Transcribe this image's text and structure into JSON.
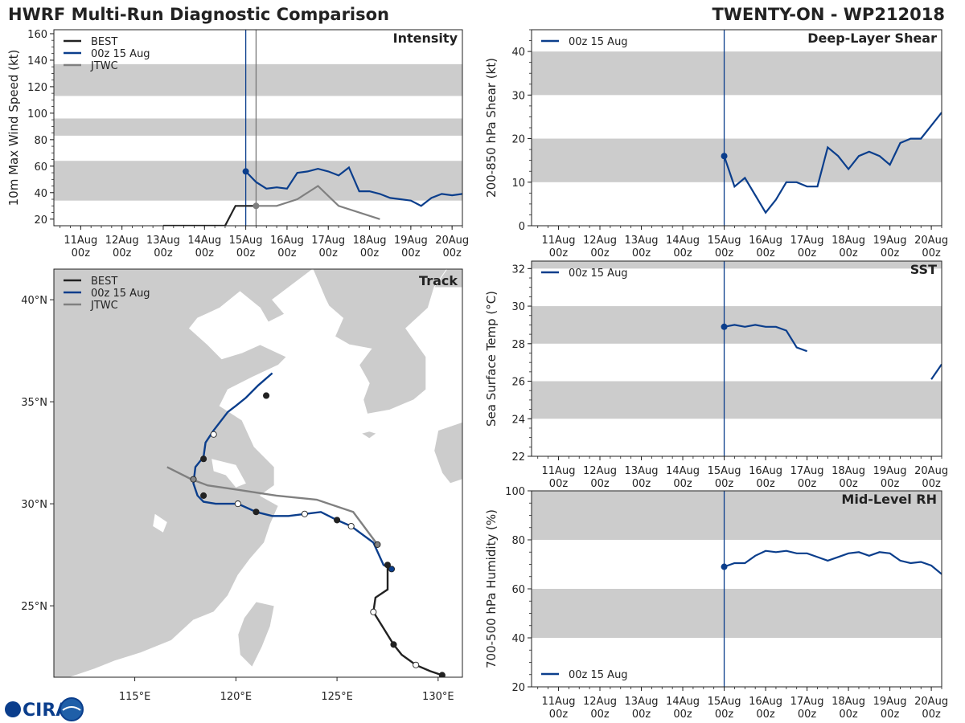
{
  "header": {
    "left_title": "HWRF Multi-Run Diagnostic Comparison",
    "right_title": "TWENTY-ON - WP212018"
  },
  "logo": {
    "text": "CIRA"
  },
  "colors": {
    "best": "#222222",
    "hwrf": "#0b3e8c",
    "jtwc": "#808080",
    "band": "#cccccc",
    "land": "#cccccc",
    "current": "#0b3e8c"
  },
  "time_axis": {
    "labels": [
      "11Aug 00z",
      "12Aug 00z",
      "13Aug 00z",
      "14Aug 00z",
      "15Aug 00z",
      "16Aug 00z",
      "17Aug 00z",
      "18Aug 00z",
      "19Aug 00z",
      "20Aug 00z"
    ],
    "day_values": [
      11,
      12,
      13,
      14,
      15,
      16,
      17,
      18,
      19,
      20
    ],
    "range": [
      10.35,
      20.25
    ],
    "current": 15.0
  },
  "chart_data": [
    {
      "type": "line",
      "id": "intensity",
      "title": "Intensity",
      "ylabel": "10m Max Wind Speed (kt)",
      "ylim": [
        15,
        163
      ],
      "yticks": [
        20,
        40,
        60,
        80,
        100,
        120,
        140,
        160
      ],
      "bands": [
        [
          34,
          64
        ],
        [
          83,
          96
        ],
        [
          113,
          137
        ]
      ],
      "legend": [
        "BEST",
        "00z 15 Aug",
        "JTWC"
      ],
      "extra_vline": 15.25,
      "series": [
        {
          "name": "BEST",
          "style": "best",
          "x": [
            13.0,
            13.5,
            14.0,
            14.5,
            14.75,
            15.0,
            15.25
          ],
          "y": [
            15,
            15,
            15,
            15,
            30,
            30,
            30
          ]
        },
        {
          "name": "00z 15 Aug",
          "style": "hwrf",
          "marker_first": true,
          "x": [
            15.0,
            15.25,
            15.5,
            15.75,
            16.0,
            16.25,
            16.5,
            16.75,
            17.0,
            17.25,
            17.5,
            17.75,
            18.0,
            18.25,
            18.5,
            18.75,
            19.0,
            19.25,
            19.5,
            19.75,
            20.0,
            20.25
          ],
          "y": [
            56,
            48,
            43,
            44,
            43,
            55,
            56,
            58,
            56,
            53,
            59,
            41,
            41,
            39,
            36,
            35,
            34,
            30,
            36,
            39,
            38,
            39
          ]
        },
        {
          "name": "JTWC",
          "style": "jtwc",
          "marker_first": true,
          "x": [
            15.25,
            15.75,
            16.25,
            16.75,
            17.25,
            18.25
          ],
          "y": [
            30,
            30,
            35,
            45,
            30,
            20
          ]
        }
      ]
    },
    {
      "type": "line",
      "id": "shear",
      "title": "Deep-Layer Shear",
      "ylabel": "200-850 hPa Shear (kt)",
      "ylim": [
        0,
        45
      ],
      "yticks": [
        0,
        10,
        20,
        30,
        40
      ],
      "bands": [
        [
          10,
          20
        ],
        [
          30,
          40
        ]
      ],
      "legend": [
        "00z 15 Aug"
      ],
      "series": [
        {
          "name": "00z 15 Aug",
          "style": "hwrf",
          "marker_first": true,
          "x": [
            15.0,
            15.25,
            15.5,
            15.75,
            16.0,
            16.25,
            16.5,
            16.75,
            17.0,
            17.25,
            17.5,
            17.75,
            18.0,
            18.25,
            18.5,
            18.75,
            19.0,
            19.25,
            19.5,
            19.75,
            20.0,
            20.25
          ],
          "y": [
            16,
            9,
            11,
            7,
            3,
            6,
            10,
            10,
            9,
            9,
            18,
            16,
            13,
            16,
            17,
            16,
            14,
            19,
            20,
            20,
            23,
            26
          ]
        }
      ]
    },
    {
      "type": "line",
      "id": "sst",
      "title": "SST",
      "ylabel": "Sea Surface Temp (°C)",
      "ylim": [
        22,
        32.4
      ],
      "yticks": [
        22,
        24,
        26,
        28,
        30,
        32
      ],
      "bands": [
        [
          24,
          26
        ],
        [
          28,
          30
        ],
        [
          32,
          34
        ]
      ],
      "legend": [
        "00z 15 Aug"
      ],
      "series": [
        {
          "name": "00z 15 Aug",
          "style": "hwrf",
          "marker_first": true,
          "x": [
            15.0,
            15.25,
            15.5,
            15.75,
            16.0,
            16.25,
            16.5,
            16.75,
            17.0
          ],
          "y": [
            28.9,
            29.0,
            28.9,
            29.0,
            28.9,
            28.9,
            28.7,
            27.8,
            27.6
          ]
        },
        {
          "name": "00z 15 Aug (cont.)",
          "style": "hwrf",
          "x": [
            20.0,
            20.25
          ],
          "y": [
            26.1,
            26.9
          ]
        }
      ]
    },
    {
      "type": "line",
      "id": "rh",
      "title": "Mid-Level RH",
      "ylabel": "700-500 hPa Humidity (%)",
      "ylim": [
        20,
        100
      ],
      "yticks": [
        20,
        40,
        60,
        80,
        100
      ],
      "bands": [
        [
          40,
          60
        ],
        [
          80,
          100
        ]
      ],
      "legend": [
        "00z 15 Aug"
      ],
      "legend_pos": "bottom-left",
      "series": [
        {
          "name": "00z 15 Aug",
          "style": "hwrf",
          "marker_first": true,
          "x": [
            15.0,
            15.25,
            15.5,
            15.75,
            16.0,
            16.25,
            16.5,
            16.75,
            17.0,
            17.25,
            17.5,
            17.75,
            18.0,
            18.25,
            18.5,
            18.75,
            19.0,
            19.25,
            19.5,
            19.75,
            20.0,
            20.25
          ],
          "y": [
            69,
            70.5,
            70.5,
            73.5,
            75.5,
            75,
            75.5,
            74.5,
            74.5,
            73,
            71.5,
            73,
            74.5,
            75,
            73.5,
            75,
            74.5,
            71.5,
            70.5,
            71,
            69.5,
            66
          ]
        }
      ]
    },
    {
      "type": "map",
      "id": "track",
      "title": "Track",
      "lon_range": [
        111,
        131.2
      ],
      "lat_range": [
        21.5,
        41.5
      ],
      "lon_ticks": [
        115,
        120,
        125,
        130
      ],
      "lon_labels": [
        "115°E",
        "120°E",
        "125°E",
        "130°E"
      ],
      "lat_ticks": [
        25,
        30,
        35,
        40
      ],
      "lat_labels": [
        "25°N",
        "30°N",
        "35°N",
        "40°N"
      ],
      "legend": [
        "BEST",
        "00z 15 Aug",
        "JTWC"
      ],
      "series": [
        {
          "name": "BEST",
          "style": "best",
          "lon": [
            130.2,
            129.6,
            128.9,
            128.2,
            127.8,
            127.3,
            126.8,
            126.9,
            127.5,
            127.5
          ],
          "lat": [
            21.6,
            21.8,
            22.1,
            22.6,
            23.1,
            23.9,
            24.7,
            25.4,
            25.8,
            27.0
          ]
        },
        {
          "name": "00z 15 Aug",
          "style": "hwrf",
          "lon": [
            127.7,
            127.3,
            126.8,
            125.7,
            125.0,
            124.2,
            123.4,
            122.6,
            121.8,
            121.0,
            120.1,
            119.0,
            118.4,
            118.1,
            117.9,
            118.0,
            118.4,
            118.5,
            118.9,
            119.6,
            120.0,
            120.5,
            121.1,
            121.8
          ],
          "lat": [
            26.8,
            27.0,
            28.1,
            28.9,
            29.2,
            29.6,
            29.5,
            29.4,
            29.4,
            29.6,
            30.0,
            30.0,
            30.1,
            30.4,
            31.0,
            31.8,
            32.3,
            33.0,
            33.6,
            34.5,
            34.8,
            35.2,
            35.8,
            36.4
          ]
        },
        {
          "name": "JTWC",
          "style": "jtwc",
          "lon": [
            127.0,
            125.8,
            124.0,
            122.0,
            120.0,
            118.6,
            117.8,
            116.6
          ],
          "lat": [
            28.0,
            29.6,
            30.2,
            30.4,
            30.7,
            30.9,
            31.2,
            31.8
          ]
        }
      ],
      "markers": [
        {
          "lon": 130.2,
          "lat": 21.6,
          "fill": "#222222"
        },
        {
          "lon": 128.9,
          "lat": 22.1,
          "fill": "#ffffff"
        },
        {
          "lon": 127.8,
          "lat": 23.1,
          "fill": "#222222"
        },
        {
          "lon": 126.8,
          "lat": 24.7,
          "fill": "#ffffff"
        },
        {
          "lon": 127.5,
          "lat": 27.0,
          "fill": "#222222"
        },
        {
          "lon": 127.7,
          "lat": 26.8,
          "fill": "#0b3e8c"
        },
        {
          "lon": 127.0,
          "lat": 28.0,
          "fill": "#808080"
        },
        {
          "lon": 125.7,
          "lat": 28.9,
          "fill": "#ffffff"
        },
        {
          "lon": 125.0,
          "lat": 29.2,
          "fill": "#222222"
        },
        {
          "lon": 123.4,
          "lat": 29.5,
          "fill": "#ffffff"
        },
        {
          "lon": 121.0,
          "lat": 29.6,
          "fill": "#222222"
        },
        {
          "lon": 120.1,
          "lat": 30.0,
          "fill": "#ffffff"
        },
        {
          "lon": 118.4,
          "lat": 30.4,
          "fill": "#222222"
        },
        {
          "lon": 117.9,
          "lat": 31.2,
          "fill": "#888888"
        },
        {
          "lon": 118.4,
          "lat": 32.2,
          "fill": "#222222"
        },
        {
          "lon": 118.9,
          "lat": 33.4,
          "fill": "#ffffff"
        },
        {
          "lon": 121.5,
          "lat": 35.3,
          "fill": "#222222"
        }
      ]
    }
  ]
}
